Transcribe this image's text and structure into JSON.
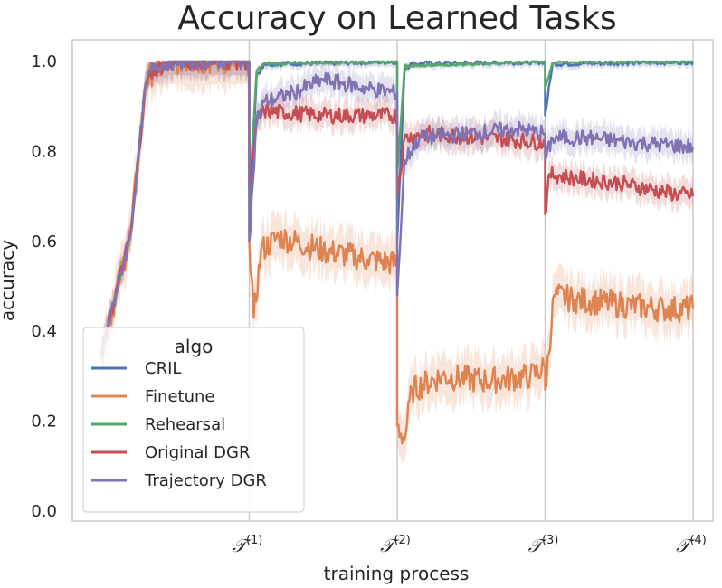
{
  "chart_data": {
    "type": "line",
    "title": "Accuracy on Learned Tasks",
    "xlabel": "training process",
    "ylabel": "accuracy",
    "ylim": [
      0.0,
      1.0
    ],
    "xlim": [
      0,
      4
    ],
    "yticks": [
      "0.0",
      "0.2",
      "0.4",
      "0.6",
      "0.8",
      "1.0"
    ],
    "xticks": [
      {
        "value": 1,
        "label": "𝒯",
        "sup": "(1)"
      },
      {
        "value": 2,
        "label": "𝒯",
        "sup": "(2)"
      },
      {
        "value": 3,
        "label": "𝒯",
        "sup": "(3)"
      },
      {
        "value": 4,
        "label": "𝒯",
        "sup": "(4)"
      }
    ],
    "grid": true,
    "legend": {
      "title": "algo",
      "position": "lower-left"
    },
    "series": [
      {
        "name": "CRIL",
        "color": "#4c72b0",
        "band": 0.01,
        "points": [
          [
            0,
            0.35
          ],
          [
            0.2,
            0.62
          ],
          [
            0.3,
            0.95
          ],
          [
            0.35,
            0.99
          ],
          [
            0.5,
            1.0
          ],
          [
            1.0,
            1.0
          ],
          [
            1.0,
            0.62
          ],
          [
            1.05,
            0.97
          ],
          [
            1.1,
            0.995
          ],
          [
            2.0,
            1.0
          ],
          [
            2.0,
            0.6
          ],
          [
            2.05,
            0.985
          ],
          [
            2.1,
            0.995
          ],
          [
            3.0,
            1.0
          ],
          [
            3.0,
            0.88
          ],
          [
            3.05,
            0.995
          ],
          [
            4.0,
            1.0
          ]
        ]
      },
      {
        "name": "Finetune",
        "color": "#dd8452",
        "band": 0.05,
        "points": [
          [
            0,
            0.35
          ],
          [
            0.2,
            0.62
          ],
          [
            0.3,
            0.95
          ],
          [
            0.35,
            0.98
          ],
          [
            0.5,
            1.0
          ],
          [
            1.0,
            1.0
          ],
          [
            1.0,
            0.6
          ],
          [
            1.03,
            0.43
          ],
          [
            1.08,
            0.58
          ],
          [
            1.2,
            0.61
          ],
          [
            1.5,
            0.58
          ],
          [
            1.8,
            0.56
          ],
          [
            2.0,
            0.55
          ],
          [
            2.0,
            0.19
          ],
          [
            2.05,
            0.16
          ],
          [
            2.1,
            0.27
          ],
          [
            2.3,
            0.3
          ],
          [
            2.6,
            0.29
          ],
          [
            2.9,
            0.3
          ],
          [
            3.0,
            0.32
          ],
          [
            3.0,
            0.27
          ],
          [
            3.06,
            0.48
          ],
          [
            3.2,
            0.47
          ],
          [
            3.5,
            0.46
          ],
          [
            3.8,
            0.45
          ],
          [
            4.0,
            0.45
          ]
        ]
      },
      {
        "name": "Rehearsal",
        "color": "#55a868",
        "band": 0.005,
        "points": [
          [
            0,
            0.35
          ],
          [
            0.2,
            0.62
          ],
          [
            0.3,
            0.95
          ],
          [
            0.35,
            0.99
          ],
          [
            0.5,
            1.0
          ],
          [
            1.0,
            1.0
          ],
          [
            1.0,
            0.7
          ],
          [
            1.05,
            0.98
          ],
          [
            1.1,
            0.995
          ],
          [
            2.0,
            1.0
          ],
          [
            2.0,
            0.75
          ],
          [
            2.05,
            0.99
          ],
          [
            3.0,
            1.0
          ],
          [
            3.0,
            0.94
          ],
          [
            3.05,
            0.998
          ],
          [
            4.0,
            1.0
          ]
        ]
      },
      {
        "name": "Original DGR",
        "color": "#c44e52",
        "band": 0.03,
        "points": [
          [
            0,
            0.35
          ],
          [
            0.2,
            0.62
          ],
          [
            0.3,
            0.95
          ],
          [
            0.35,
            0.98
          ],
          [
            0.5,
            1.0
          ],
          [
            1.0,
            1.0
          ],
          [
            1.0,
            0.72
          ],
          [
            1.05,
            0.86
          ],
          [
            1.1,
            0.89
          ],
          [
            1.5,
            0.88
          ],
          [
            2.0,
            0.88
          ],
          [
            2.0,
            0.7
          ],
          [
            2.05,
            0.83
          ],
          [
            2.2,
            0.84
          ],
          [
            2.6,
            0.83
          ],
          [
            3.0,
            0.82
          ],
          [
            3.0,
            0.66
          ],
          [
            3.03,
            0.75
          ],
          [
            3.2,
            0.74
          ],
          [
            3.5,
            0.73
          ],
          [
            3.8,
            0.71
          ],
          [
            4.0,
            0.7
          ]
        ]
      },
      {
        "name": "Trajectory DGR",
        "color": "#8172b3",
        "band": 0.03,
        "points": [
          [
            0,
            0.35
          ],
          [
            0.2,
            0.62
          ],
          [
            0.3,
            0.95
          ],
          [
            0.35,
            0.99
          ],
          [
            0.5,
            1.0
          ],
          [
            1.0,
            1.0
          ],
          [
            1.0,
            0.6
          ],
          [
            1.05,
            0.87
          ],
          [
            1.1,
            0.91
          ],
          [
            1.3,
            0.93
          ],
          [
            1.5,
            0.96
          ],
          [
            1.8,
            0.94
          ],
          [
            2.0,
            0.93
          ],
          [
            2.0,
            0.48
          ],
          [
            2.05,
            0.78
          ],
          [
            2.15,
            0.83
          ],
          [
            2.5,
            0.84
          ],
          [
            2.8,
            0.85
          ],
          [
            3.0,
            0.84
          ],
          [
            3.0,
            0.78
          ],
          [
            3.05,
            0.83
          ],
          [
            3.3,
            0.83
          ],
          [
            3.6,
            0.82
          ],
          [
            4.0,
            0.81
          ]
        ]
      }
    ]
  }
}
